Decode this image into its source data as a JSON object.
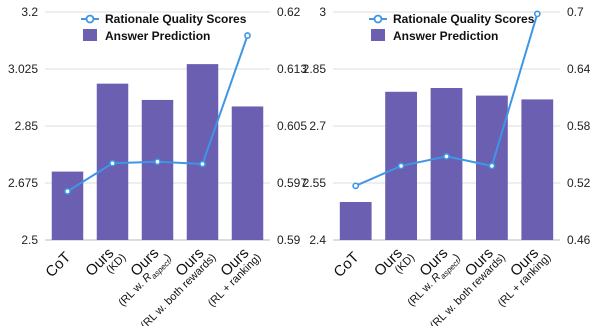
{
  "colors": {
    "bar": "#6a5fb0",
    "line": "#3e96e6",
    "grid": "#dddddd"
  },
  "chart_data": [
    {
      "type": "bar",
      "categories": [
        "CoT",
        "Ours (KD)",
        "Ours (RL w. R_aspect)",
        "Ours (RL w. both rewards)",
        "Ours (RL + ranking)"
      ],
      "series": [
        {
          "name": "Rationale Quality Scores",
          "type": "line",
          "axis": "right",
          "values": [
            0.5964,
            0.6001,
            0.6003,
            0.6,
            0.6169
          ]
        },
        {
          "name": "Answer Prediction",
          "type": "bar",
          "axis": "left",
          "values": [
            2.71,
            2.98,
            2.93,
            3.04,
            2.91
          ]
        }
      ],
      "ylim": [
        2.5,
        3.2
      ],
      "y_ticks": [
        "2.5",
        "2.675",
        "2.85",
        "3.025",
        "3.2"
      ],
      "y2lim": [
        0.59,
        0.62
      ],
      "y2_ticks": [
        "0.59",
        "0.597",
        "0.605",
        "0.613",
        "0.62"
      ],
      "legend": "top-center",
      "grid": true
    },
    {
      "type": "bar",
      "categories": [
        "CoT",
        "Ours (KD)",
        "Ours (RL w. R_aspect)",
        "Ours (RL w. both rewards)",
        "Ours (RL + ranking)"
      ],
      "series": [
        {
          "name": "Rationale Quality Scores",
          "type": "line",
          "axis": "right",
          "values": [
            0.517,
            0.538,
            0.548,
            0.538,
            0.698
          ]
        },
        {
          "name": "Answer Prediction",
          "type": "bar",
          "axis": "left",
          "values": [
            2.5,
            2.79,
            2.8,
            2.78,
            2.77
          ]
        }
      ],
      "ylim": [
        2.4,
        3.0
      ],
      "y_ticks": [
        "2.4",
        "2.55",
        "2.7",
        "2.85",
        "3"
      ],
      "y2lim": [
        0.46,
        0.7
      ],
      "y2_ticks": [
        "0.46",
        "0.52",
        "0.58",
        "0.64",
        "0.7"
      ],
      "legend": "top-center",
      "grid": true
    }
  ]
}
